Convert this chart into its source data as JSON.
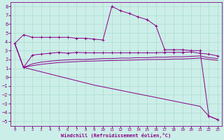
{
  "xlabel": "Windchill (Refroidissement éolien,°C)",
  "xlim": [
    -0.5,
    23.5
  ],
  "ylim": [
    -5.5,
    8.5
  ],
  "xticks": [
    0,
    1,
    2,
    3,
    4,
    5,
    6,
    7,
    8,
    9,
    10,
    11,
    12,
    13,
    14,
    15,
    16,
    17,
    18,
    19,
    20,
    21,
    22,
    23
  ],
  "yticks": [
    -5,
    -4,
    -3,
    -2,
    -1,
    0,
    1,
    2,
    3,
    4,
    5,
    6,
    7,
    8
  ],
  "bg_color": "#cceee8",
  "line_color": "#880088",
  "grid_color": "#aaddcc",
  "lines": [
    {
      "x": [
        0,
        1,
        2,
        3,
        4,
        5,
        6,
        7,
        8,
        9,
        10,
        11,
        12,
        13,
        14,
        15,
        16,
        17,
        18,
        19,
        20,
        21,
        22,
        23
      ],
      "y": [
        3.8,
        4.8,
        4.5,
        4.5,
        4.5,
        4.5,
        4.5,
        4.4,
        4.4,
        4.3,
        4.2,
        8.0,
        7.5,
        7.2,
        6.8,
        6.5,
        5.8,
        3.1,
        3.1,
        3.1,
        3.0,
        3.0,
        -4.4,
        -4.8
      ],
      "marker": "+"
    },
    {
      "x": [
        1,
        2,
        3,
        4,
        5,
        6,
        7,
        8,
        9,
        10,
        11,
        12,
        13,
        14,
        15,
        16,
        17,
        18,
        19,
        20,
        21,
        22,
        23
      ],
      "y": [
        1.1,
        2.5,
        2.6,
        2.7,
        2.8,
        2.7,
        2.8,
        2.75,
        2.75,
        2.75,
        2.75,
        2.75,
        2.75,
        2.75,
        2.75,
        2.75,
        2.8,
        2.8,
        2.8,
        2.85,
        2.7,
        2.6,
        2.4
      ],
      "marker": "+"
    },
    {
      "x": [
        0,
        1,
        2,
        3,
        4,
        5,
        6,
        7,
        8,
        9,
        10,
        11,
        12,
        13,
        14,
        15,
        16,
        17,
        18,
        19,
        20,
        21,
        22,
        23
      ],
      "y": [
        3.8,
        1.1,
        1.5,
        1.7,
        1.8,
        1.9,
        1.95,
        2.0,
        2.0,
        2.05,
        2.1,
        2.1,
        2.15,
        2.15,
        2.2,
        2.2,
        2.25,
        2.25,
        2.3,
        2.3,
        2.35,
        2.4,
        2.2,
        2.1
      ],
      "marker": null
    },
    {
      "x": [
        0,
        1,
        2,
        3,
        4,
        5,
        6,
        7,
        8,
        9,
        10,
        11,
        12,
        13,
        14,
        15,
        16,
        17,
        18,
        19,
        20,
        21,
        22,
        23
      ],
      "y": [
        3.8,
        1.1,
        1.3,
        1.45,
        1.55,
        1.65,
        1.7,
        1.75,
        1.8,
        1.82,
        1.85,
        1.88,
        1.9,
        1.92,
        1.95,
        1.98,
        2.0,
        2.0,
        2.05,
        2.05,
        2.1,
        2.15,
        2.0,
        1.9
      ],
      "marker": null
    },
    {
      "x": [
        0,
        1,
        2,
        3,
        4,
        5,
        6,
        7,
        8,
        9,
        10,
        11,
        12,
        13,
        14,
        15,
        16,
        17,
        18,
        19,
        20,
        21,
        22,
        23
      ],
      "y": [
        3.8,
        1.1,
        0.85,
        0.6,
        0.35,
        0.1,
        -0.15,
        -0.4,
        -0.65,
        -0.9,
        -1.1,
        -1.3,
        -1.5,
        -1.7,
        -1.9,
        -2.1,
        -2.3,
        -2.5,
        -2.7,
        -2.9,
        -3.1,
        -3.3,
        -4.4,
        -4.8
      ],
      "marker": null
    }
  ]
}
